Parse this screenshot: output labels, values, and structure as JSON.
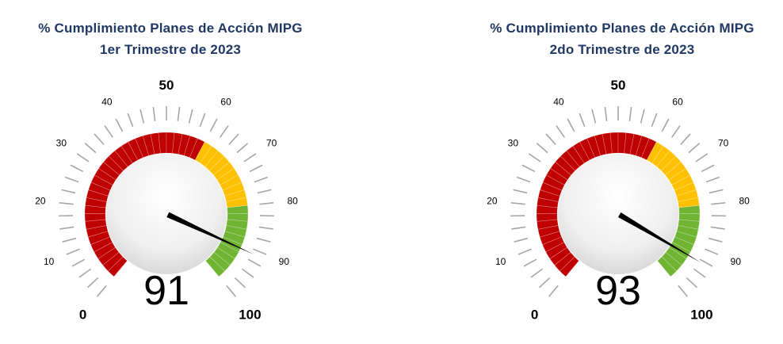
{
  "colors": {
    "title": "#1f3864",
    "red": "#c00000",
    "yellow": "#ffc000",
    "green": "#70b433",
    "tick": "#a6a6a6",
    "needle": "#000000"
  },
  "chart_data": [
    {
      "type": "gauge",
      "title_line1": "% Cumplimiento  Planes  de Acción MIPG",
      "title_line2": "1er Trimestre  de 2023",
      "value": 91,
      "value_label": "91",
      "min": 0,
      "max": 100,
      "bands": [
        {
          "from": 0,
          "to": 60,
          "color": "#c00000"
        },
        {
          "from": 60,
          "to": 80,
          "color": "#ffc000"
        },
        {
          "from": 80,
          "to": 100,
          "color": "#70b433"
        }
      ],
      "tick_labels": [
        "0",
        "10",
        "20",
        "30",
        "40",
        "50",
        "60",
        "70",
        "80",
        "90",
        "100"
      ]
    },
    {
      "type": "gauge",
      "title_line1": "% Cumplimiento  Planes  de Acción MIPG",
      "title_line2": "2do Trimestre  de 2023",
      "value": 93,
      "value_label": "93",
      "min": 0,
      "max": 100,
      "bands": [
        {
          "from": 0,
          "to": 60,
          "color": "#c00000"
        },
        {
          "from": 60,
          "to": 80,
          "color": "#ffc000"
        },
        {
          "from": 80,
          "to": 100,
          "color": "#70b433"
        }
      ],
      "tick_labels": [
        "0",
        "10",
        "20",
        "30",
        "40",
        "50",
        "60",
        "70",
        "80",
        "90",
        "100"
      ]
    }
  ]
}
